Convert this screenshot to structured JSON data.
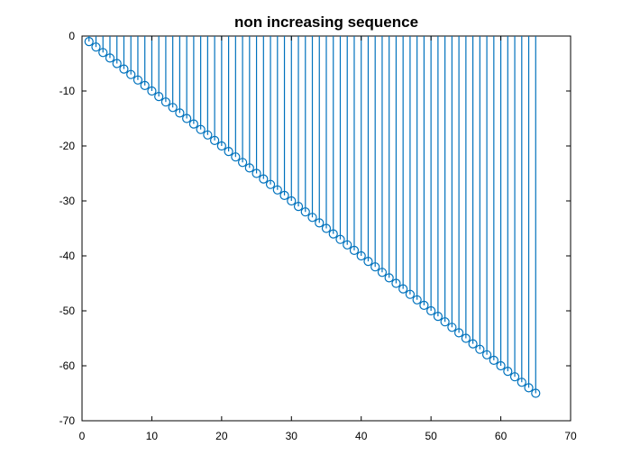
{
  "chart_data": {
    "type": "stem",
    "title": "non increasing sequence",
    "xlabel": "",
    "ylabel": "",
    "xlim": [
      0,
      70
    ],
    "ylim": [
      -70,
      0
    ],
    "xticks": [
      0,
      10,
      20,
      30,
      40,
      50,
      60,
      70
    ],
    "yticks": [
      0,
      -10,
      -20,
      -30,
      -40,
      -50,
      -60,
      -70
    ],
    "color": "#0072bd",
    "marker": "circle",
    "grid": false,
    "series": [
      {
        "x": [
          1,
          2,
          3,
          4,
          5,
          6,
          7,
          8,
          9,
          10,
          11,
          12,
          13,
          14,
          15,
          16,
          17,
          18,
          19,
          20,
          21,
          22,
          23,
          24,
          25,
          26,
          27,
          28,
          29,
          30,
          31,
          32,
          33,
          34,
          35,
          36,
          37,
          38,
          39,
          40,
          41,
          42,
          43,
          44,
          45,
          46,
          47,
          48,
          49,
          50,
          51,
          52,
          53,
          54,
          55,
          56,
          57,
          58,
          59,
          60,
          61,
          62,
          63,
          64,
          65
        ],
        "y": [
          -1,
          -2,
          -3,
          -4,
          -5,
          -6,
          -7,
          -8,
          -9,
          -10,
          -11,
          -12,
          -13,
          -14,
          -15,
          -16,
          -17,
          -18,
          -19,
          -20,
          -21,
          -22,
          -23,
          -24,
          -25,
          -26,
          -27,
          -28,
          -29,
          -30,
          -31,
          -32,
          -33,
          -34,
          -35,
          -36,
          -37,
          -38,
          -39,
          -40,
          -41,
          -42,
          -43,
          -44,
          -45,
          -46,
          -47,
          -48,
          -49,
          -50,
          -51,
          -52,
          -53,
          -54,
          -55,
          -56,
          -57,
          -58,
          -59,
          -60,
          -61,
          -62,
          -63,
          -64,
          -65
        ]
      }
    ]
  }
}
